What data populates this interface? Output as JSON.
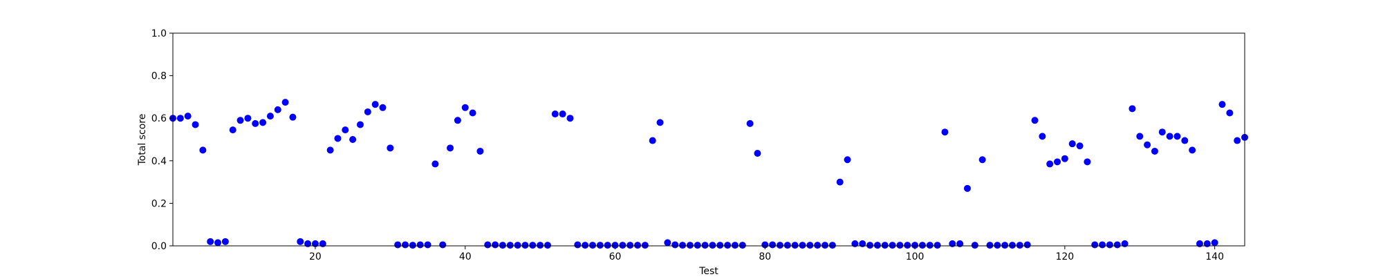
{
  "chart_data": {
    "type": "scatter",
    "title": "",
    "xlabel": "Test",
    "ylabel": "Total score",
    "xlim": [
      1,
      144
    ],
    "ylim": [
      0.0,
      1.0
    ],
    "xticks": [
      20,
      40,
      60,
      80,
      100,
      120,
      140
    ],
    "yticks": [
      0.0,
      0.2,
      0.4,
      0.6,
      0.8,
      1.0
    ],
    "grid": false,
    "legend": "none",
    "marker_color": "#0000ff",
    "series": [
      {
        "x": [
          1,
          2,
          3,
          4,
          5,
          6,
          7,
          8,
          9,
          10,
          11,
          12,
          13,
          14,
          15,
          16,
          17,
          18,
          19,
          20,
          21,
          22,
          23,
          24,
          25,
          26,
          27,
          28,
          29,
          30,
          31,
          32,
          33,
          34,
          35,
          36,
          37,
          38,
          39,
          40,
          41,
          42,
          43,
          44,
          45,
          46,
          47,
          48,
          49,
          50,
          51,
          52,
          53,
          54,
          55,
          56,
          57,
          58,
          59,
          60,
          61,
          62,
          63,
          64,
          65,
          66,
          67,
          68,
          69,
          70,
          71,
          72,
          73,
          74,
          75,
          76,
          77,
          78,
          79,
          80,
          81,
          82,
          83,
          84,
          85,
          86,
          87,
          88,
          89,
          90,
          91,
          92,
          93,
          94,
          95,
          96,
          97,
          98,
          99,
          100,
          101,
          102,
          103,
          104,
          105,
          106,
          107,
          108,
          109,
          110,
          111,
          112,
          113,
          114,
          115,
          116,
          117,
          118,
          119,
          120,
          121,
          122,
          123,
          124,
          125,
          126,
          127,
          128,
          129,
          130,
          131,
          132,
          133,
          134,
          135,
          136,
          137,
          138,
          139,
          140,
          141,
          142,
          143,
          144
        ],
        "y": [
          0.6,
          0.6,
          0.61,
          0.57,
          0.45,
          0.02,
          0.015,
          0.02,
          0.545,
          0.59,
          0.6,
          0.575,
          0.58,
          0.61,
          0.64,
          0.675,
          0.605,
          0.02,
          0.01,
          0.01,
          0.01,
          0.45,
          0.505,
          0.545,
          0.5,
          0.57,
          0.63,
          0.665,
          0.65,
          0.46,
          0.005,
          0.005,
          0.003,
          0.005,
          0.005,
          0.385,
          0.005,
          0.46,
          0.59,
          0.65,
          0.625,
          0.445,
          0.005,
          0.005,
          0.003,
          0.003,
          0.003,
          0.003,
          0.003,
          0.003,
          0.003,
          0.62,
          0.62,
          0.6,
          0.005,
          0.003,
          0.003,
          0.003,
          0.003,
          0.003,
          0.003,
          0.003,
          0.003,
          0.003,
          0.495,
          0.58,
          0.015,
          0.005,
          0.003,
          0.003,
          0.003,
          0.003,
          0.003,
          0.003,
          0.003,
          0.003,
          0.003,
          0.575,
          0.435,
          0.005,
          0.005,
          0.003,
          0.003,
          0.003,
          0.003,
          0.003,
          0.003,
          0.003,
          0.003,
          0.3,
          0.405,
          0.01,
          0.01,
          0.003,
          0.003,
          0.003,
          0.003,
          0.003,
          0.003,
          0.003,
          0.003,
          0.003,
          0.003,
          0.535,
          0.01,
          0.01,
          0.27,
          0.003,
          0.405,
          0.003,
          0.003,
          0.003,
          0.003,
          0.003,
          0.005,
          0.59,
          0.515,
          0.385,
          0.395,
          0.41,
          0.48,
          0.47,
          0.395,
          0.005,
          0.005,
          0.005,
          0.005,
          0.01,
          0.645,
          0.515,
          0.475,
          0.445,
          0.535,
          0.515,
          0.515,
          0.495,
          0.45,
          0.01,
          0.01,
          0.015,
          0.665,
          0.625,
          0.495,
          0.51
        ]
      }
    ]
  }
}
